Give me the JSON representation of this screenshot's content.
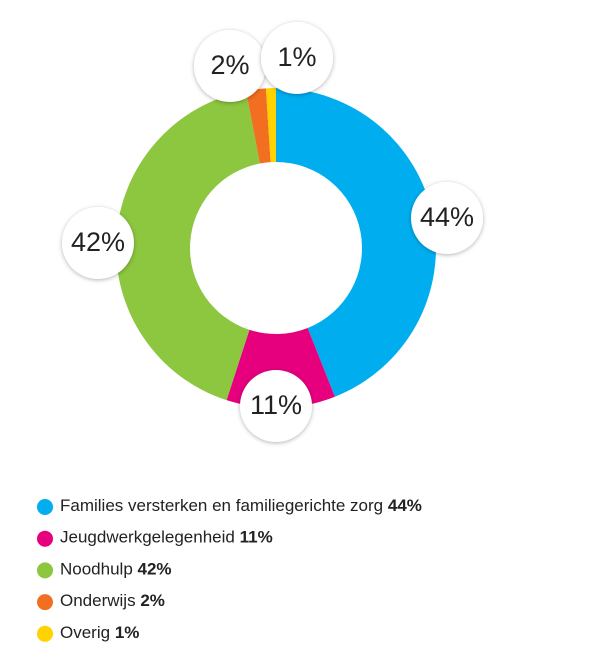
{
  "chart_data": {
    "type": "donut",
    "categories": [
      "Families versterken en familiegerichte zorg",
      "Jeugdwerkgelegenheid",
      "Noodhulp",
      "Onderwijs",
      "Overig"
    ],
    "values": [
      44,
      11,
      42,
      2,
      1
    ],
    "value_labels": [
      "44%",
      "11%",
      "42%",
      "2%",
      "1%"
    ],
    "colors": [
      "#00aeef",
      "#e6007e",
      "#8dc63f",
      "#f26f21",
      "#ffd200"
    ],
    "legend": "bottom"
  }
}
